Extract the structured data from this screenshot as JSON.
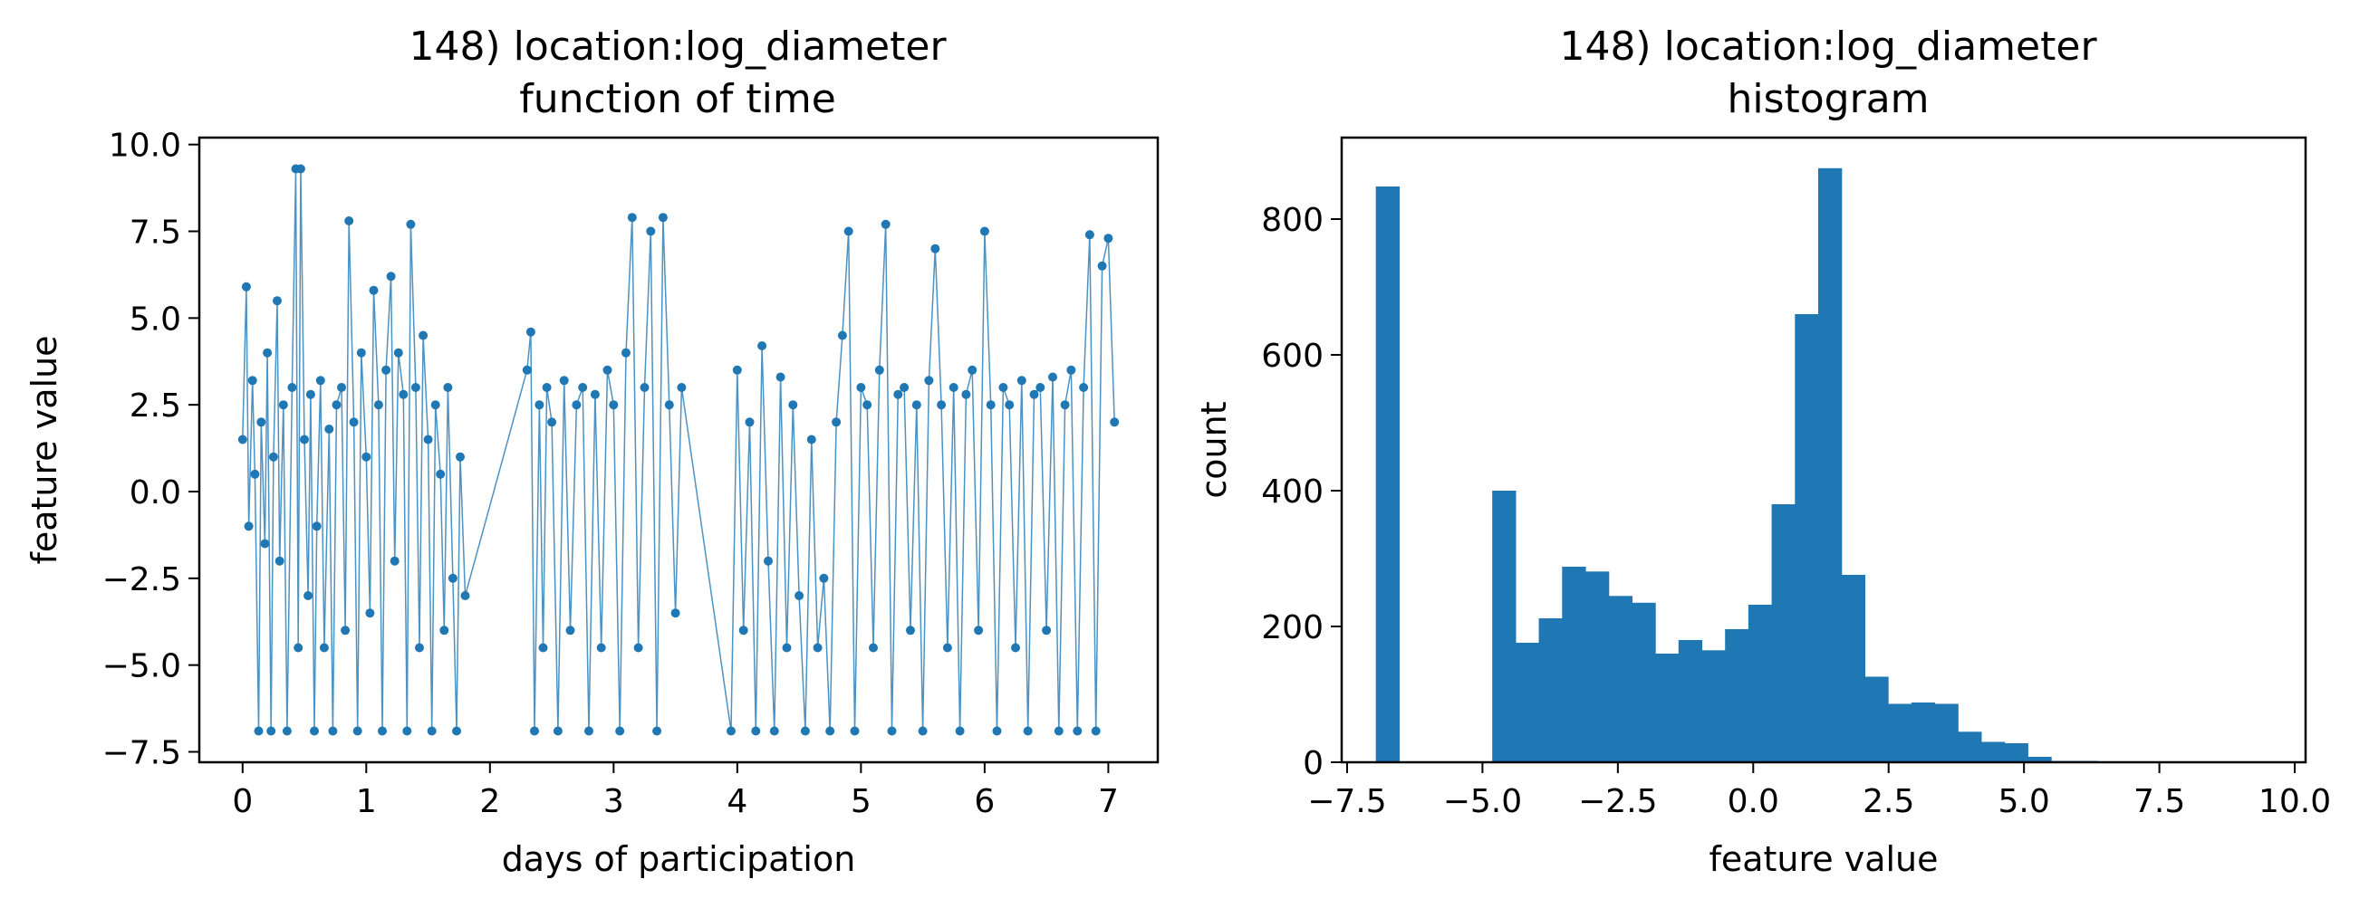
{
  "chart_data": [
    {
      "type": "line",
      "title": [
        "148) location:log_diameter",
        "function of time"
      ],
      "xlabel": "days of participation",
      "ylabel": "feature value",
      "xlim": [
        -0.35,
        7.4
      ],
      "ylim": [
        -7.8,
        10.2
      ],
      "xticks": [
        0,
        1,
        2,
        3,
        4,
        5,
        6,
        7
      ],
      "yticks": [
        -7.5,
        -5.0,
        -2.5,
        0.0,
        2.5,
        5.0,
        7.5,
        10.0
      ],
      "ytick_labels": [
        "−7.5",
        "−5.0",
        "−2.5",
        "0.0",
        "2.5",
        "5.0",
        "7.5",
        "10.0"
      ],
      "grid": false,
      "color": "#1f77b4",
      "marker": "point",
      "sampled_points_note_free": true,
      "series": [
        {
          "x": [
            0.0,
            0.03,
            0.05,
            0.08,
            0.1,
            0.13,
            0.15,
            0.18,
            0.2,
            0.23,
            0.25,
            0.28,
            0.3,
            0.33,
            0.36,
            0.4,
            0.43,
            0.45,
            0.47,
            0.5,
            0.53,
            0.55,
            0.58,
            0.6,
            0.63,
            0.66,
            0.7,
            0.73,
            0.76,
            0.8,
            0.83,
            0.86,
            0.9,
            0.93,
            0.96,
            1.0,
            1.03,
            1.06,
            1.1,
            1.13,
            1.16,
            1.2,
            1.23,
            1.26,
            1.3,
            1.33,
            1.36,
            1.4,
            1.43,
            1.46,
            1.5,
            1.53,
            1.56,
            1.6,
            1.63,
            1.66,
            1.7,
            1.73,
            1.76,
            1.8,
            2.3,
            2.33,
            2.36,
            2.4,
            2.43,
            2.46,
            2.5,
            2.55,
            2.6,
            2.65,
            2.7,
            2.75,
            2.8,
            2.85,
            2.9,
            2.95,
            3.0,
            3.05,
            3.1,
            3.15,
            3.2,
            3.25,
            3.3,
            3.35,
            3.4,
            3.45,
            3.5,
            3.55,
            3.95,
            4.0,
            4.05,
            4.1,
            4.15,
            4.2,
            4.25,
            4.3,
            4.35,
            4.4,
            4.45,
            4.5,
            4.55,
            4.6,
            4.65,
            4.7,
            4.75,
            4.8,
            4.85,
            4.9,
            4.95,
            5.0,
            5.05,
            5.1,
            5.15,
            5.2,
            5.25,
            5.3,
            5.35,
            5.4,
            5.45,
            5.5,
            5.55,
            5.6,
            5.65,
            5.7,
            5.75,
            5.8,
            5.85,
            5.9,
            5.95,
            6.0,
            6.05,
            6.1,
            6.15,
            6.2,
            6.25,
            6.3,
            6.35,
            6.4,
            6.45,
            6.5,
            6.55,
            6.6,
            6.65,
            6.7,
            6.75,
            6.8,
            6.85,
            6.9,
            6.95,
            7.0,
            7.05
          ],
          "y": [
            1.5,
            5.9,
            -1.0,
            3.2,
            0.5,
            -6.9,
            2.0,
            -1.5,
            4.0,
            -6.9,
            1.0,
            5.5,
            -2.0,
            2.5,
            -6.9,
            3.0,
            9.3,
            -4.5,
            9.3,
            1.5,
            -3.0,
            2.8,
            -6.9,
            -1.0,
            3.2,
            -4.5,
            1.8,
            -6.9,
            2.5,
            3.0,
            -4.0,
            7.8,
            2.0,
            -6.9,
            4.0,
            1.0,
            -3.5,
            5.8,
            2.5,
            -6.9,
            3.5,
            6.2,
            -2.0,
            4.0,
            2.8,
            -6.9,
            7.7,
            3.0,
            -4.5,
            4.5,
            1.5,
            -6.9,
            2.5,
            0.5,
            -4.0,
            3.0,
            -2.5,
            -6.9,
            1.0,
            -3.0,
            3.5,
            4.6,
            -6.9,
            2.5,
            -4.5,
            3.0,
            2.0,
            -6.9,
            3.2,
            -4.0,
            2.5,
            3.0,
            -6.9,
            2.8,
            -4.5,
            3.5,
            2.5,
            -6.9,
            4.0,
            7.9,
            -4.5,
            3.0,
            7.5,
            -6.9,
            7.9,
            2.5,
            -3.5,
            3.0,
            -6.9,
            3.5,
            -4.0,
            2.0,
            -6.9,
            4.2,
            -2.0,
            -6.9,
            3.3,
            -4.5,
            2.5,
            -3.0,
            -6.9,
            1.5,
            -4.5,
            -2.5,
            -6.9,
            2.0,
            4.5,
            7.5,
            -6.9,
            3.0,
            2.5,
            -4.5,
            3.5,
            7.7,
            -6.9,
            2.8,
            3.0,
            -4.0,
            2.5,
            -6.9,
            3.2,
            7.0,
            2.5,
            -4.5,
            3.0,
            -6.9,
            2.8,
            3.5,
            -4.0,
            7.5,
            2.5,
            -6.9,
            3.0,
            2.5,
            -4.5,
            3.2,
            -6.9,
            2.8,
            3.0,
            -4.0,
            3.3,
            -6.9,
            2.5,
            3.5,
            -6.9,
            3.0,
            7.4,
            -6.9,
            6.5,
            7.3,
            2.0
          ]
        }
      ]
    },
    {
      "type": "bar",
      "subtype": "histogram",
      "title": [
        "148) location:log_diameter",
        "histogram"
      ],
      "xlabel": "feature value",
      "ylabel": "count",
      "xlim": [
        -7.6,
        10.2
      ],
      "ylim": [
        0,
        920
      ],
      "xticks": [
        -7.5,
        -5.0,
        -2.5,
        0.0,
        2.5,
        5.0,
        7.5,
        10.0
      ],
      "xtick_labels": [
        "−7.5",
        "−5.0",
        "−2.5",
        "0.0",
        "2.5",
        "5.0",
        "7.5",
        "10.0"
      ],
      "yticks": [
        0,
        200,
        400,
        600,
        800
      ],
      "ytick_labels": [
        "0",
        "200",
        "400",
        "600",
        "800"
      ],
      "grid": false,
      "color": "#1f77b4",
      "bins": [
        {
          "x0": -6.97,
          "x1": -6.54,
          "count": 848
        },
        {
          "x0": -6.54,
          "x1": -6.11,
          "count": 0
        },
        {
          "x0": -6.11,
          "x1": -5.68,
          "count": 0
        },
        {
          "x0": -5.68,
          "x1": -5.25,
          "count": 0
        },
        {
          "x0": -5.25,
          "x1": -4.82,
          "count": 0
        },
        {
          "x0": -4.82,
          "x1": -4.39,
          "count": 400
        },
        {
          "x0": -4.39,
          "x1": -3.96,
          "count": 176
        },
        {
          "x0": -3.96,
          "x1": -3.53,
          "count": 212
        },
        {
          "x0": -3.53,
          "x1": -3.1,
          "count": 288
        },
        {
          "x0": -3.1,
          "x1": -2.67,
          "count": 281
        },
        {
          "x0": -2.67,
          "x1": -2.24,
          "count": 245
        },
        {
          "x0": -2.24,
          "x1": -1.81,
          "count": 235
        },
        {
          "x0": -1.81,
          "x1": -1.38,
          "count": 160
        },
        {
          "x0": -1.38,
          "x1": -0.95,
          "count": 180
        },
        {
          "x0": -0.95,
          "x1": -0.52,
          "count": 165
        },
        {
          "x0": -0.52,
          "x1": -0.09,
          "count": 196
        },
        {
          "x0": -0.09,
          "x1": 0.34,
          "count": 232
        },
        {
          "x0": 0.34,
          "x1": 0.77,
          "count": 380
        },
        {
          "x0": 0.77,
          "x1": 1.2,
          "count": 660
        },
        {
          "x0": 1.2,
          "x1": 1.63,
          "count": 875
        },
        {
          "x0": 1.63,
          "x1": 2.06,
          "count": 276
        },
        {
          "x0": 2.06,
          "x1": 2.49,
          "count": 126
        },
        {
          "x0": 2.49,
          "x1": 2.92,
          "count": 86
        },
        {
          "x0": 2.92,
          "x1": 3.35,
          "count": 88
        },
        {
          "x0": 3.35,
          "x1": 3.78,
          "count": 86
        },
        {
          "x0": 3.78,
          "x1": 4.21,
          "count": 45
        },
        {
          "x0": 4.21,
          "x1": 4.64,
          "count": 30
        },
        {
          "x0": 4.64,
          "x1": 5.07,
          "count": 28
        },
        {
          "x0": 5.07,
          "x1": 5.5,
          "count": 8
        },
        {
          "x0": 5.5,
          "x1": 5.93,
          "count": 2
        },
        {
          "x0": 5.93,
          "x1": 6.36,
          "count": 2
        }
      ]
    }
  ]
}
